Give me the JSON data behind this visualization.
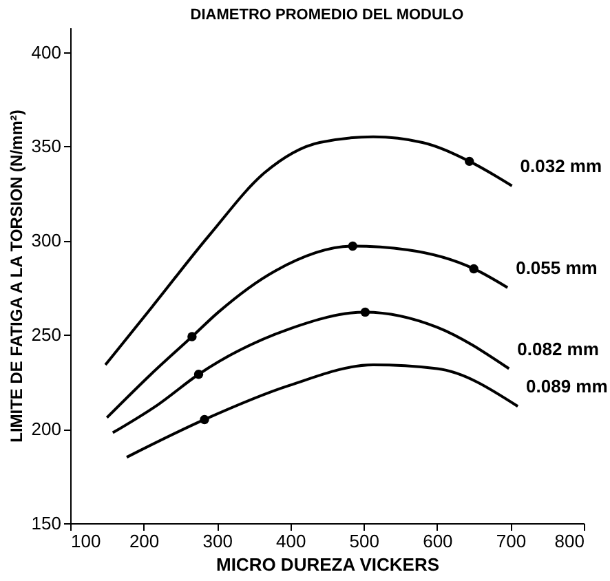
{
  "chart_data": {
    "type": "line",
    "title": "DIAMETRO PROMEDIO DEL MODULO",
    "xlabel": "MICRO DUREZA VICKERS",
    "ylabel": "LIMITE DE FATIGA A LA TORSION (N/mm²)",
    "xlim": [
      100,
      800
    ],
    "ylim": [
      150,
      413
    ],
    "xticks": [
      100,
      200,
      300,
      400,
      500,
      600,
      700,
      800
    ],
    "yticks": [
      150,
      200,
      250,
      300,
      350,
      400
    ],
    "grid": false,
    "marker": "none",
    "line_style": "solid",
    "series": [
      {
        "name": "0.032 mm",
        "color": "#000000",
        "x": [
          148,
          212,
          290,
          365,
          440,
          513,
          580,
          644,
          702
        ],
        "values": [
          234,
          265,
          303,
          336,
          352,
          355,
          352,
          342,
          329
        ]
      },
      {
        "name": "0.055 mm",
        "color": "#000000",
        "x": [
          150,
          210,
          266,
          302,
          380,
          485,
          560,
          650,
          696
        ],
        "values": [
          206,
          229,
          249,
          262,
          284,
          297,
          295,
          285,
          275
        ]
      },
      {
        "name": "0.082 mm",
        "color": "#000000",
        "x": [
          158,
          220,
          275,
          398,
          502,
          600,
          698
        ],
        "values": [
          198,
          213,
          229,
          253,
          262,
          254,
          232
        ]
      },
      {
        "name": "0.089 mm",
        "color": "#000000",
        "x": [
          177,
          283,
          398,
          513,
          600,
          710
        ],
        "values": [
          185,
          205,
          223,
          234,
          232,
          212
        ]
      },
      {
        "type": "scatter",
        "color": "#000000",
        "marker": "circle",
        "x": [
          644,
          266,
          485,
          650,
          275,
          502,
          283
        ],
        "values": [
          342,
          249,
          297,
          285,
          229,
          262,
          205
        ]
      }
    ]
  }
}
